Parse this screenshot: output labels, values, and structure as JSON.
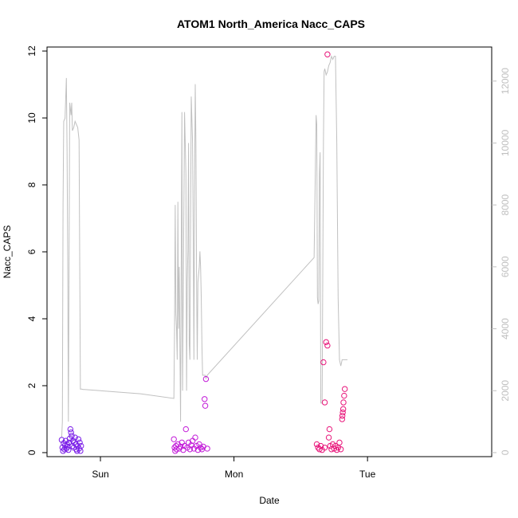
{
  "chart_data": {
    "type": "scatter",
    "title": "ATOM1 North_America Nacc_CAPS",
    "xlabel": "Date",
    "ylabel": "Nacc_CAPS",
    "x_ticks": [
      {
        "label": "Sun",
        "value": 1.0
      },
      {
        "label": "Mon",
        "value": 2.0
      },
      {
        "label": "Tue",
        "value": 3.0
      }
    ],
    "xlim": [
      0.6,
      3.93
    ],
    "ylim": [
      -0.12,
      12.12
    ],
    "y_ticks": [
      0,
      2,
      4,
      6,
      8,
      10,
      12
    ],
    "y2lim": [
      -130,
      13100
    ],
    "y2_ticks": [
      0,
      2000,
      4000,
      6000,
      8000,
      10000,
      12000
    ],
    "y2_color": "#bfbfbf",
    "grid": false,
    "series": [
      {
        "role": "points",
        "marker": "open-circle",
        "points": [
          {
            "x": 0.71,
            "y": 0.38,
            "c": "#7b1fe8"
          },
          {
            "x": 0.715,
            "y": 0.15,
            "c": "#7b1fe8"
          },
          {
            "x": 0.72,
            "y": 0.05,
            "c": "#7b1fe8"
          },
          {
            "x": 0.725,
            "y": 0.28,
            "c": "#7b1fe8"
          },
          {
            "x": 0.73,
            "y": 0.1,
            "c": "#7b1fe8"
          },
          {
            "x": 0.735,
            "y": 0.22,
            "c": "#7b1fe8"
          },
          {
            "x": 0.74,
            "y": 0.35,
            "c": "#7b1fe8"
          },
          {
            "x": 0.745,
            "y": 0.12,
            "c": "#7b1fe8"
          },
          {
            "x": 0.75,
            "y": 0.25,
            "c": "#7b1fe8"
          },
          {
            "x": 0.755,
            "y": 0.18,
            "c": "#7b1fe8"
          },
          {
            "x": 0.76,
            "y": 0.08,
            "c": "#7b1fe8"
          },
          {
            "x": 0.765,
            "y": 0.3,
            "c": "#7b1fe8"
          },
          {
            "x": 0.77,
            "y": 0.42,
            "c": "#7b1fe8"
          },
          {
            "x": 0.775,
            "y": 0.7,
            "c": "#7b1fe8"
          },
          {
            "x": 0.78,
            "y": 0.6,
            "c": "#7b1fe8"
          },
          {
            "x": 0.785,
            "y": 0.5,
            "c": "#7b1fe8"
          },
          {
            "x": 0.79,
            "y": 0.2,
            "c": "#7b1fe8"
          },
          {
            "x": 0.795,
            "y": 0.35,
            "c": "#7b1fe8"
          },
          {
            "x": 0.8,
            "y": 0.15,
            "c": "#7b1fe8"
          },
          {
            "x": 0.805,
            "y": 0.3,
            "c": "#7b1fe8"
          },
          {
            "x": 0.81,
            "y": 0.45,
            "c": "#7b1fe8"
          },
          {
            "x": 0.815,
            "y": 0.25,
            "c": "#7b1fe8"
          },
          {
            "x": 0.82,
            "y": 0.1,
            "c": "#7b1fe8"
          },
          {
            "x": 0.825,
            "y": 0.05,
            "c": "#7b1fe8"
          },
          {
            "x": 0.83,
            "y": 0.2,
            "c": "#7b1fe8"
          },
          {
            "x": 0.835,
            "y": 0.4,
            "c": "#7b1fe8"
          },
          {
            "x": 0.84,
            "y": 0.12,
            "c": "#7b1fe8"
          },
          {
            "x": 0.845,
            "y": 0.3,
            "c": "#7b1fe8"
          },
          {
            "x": 0.85,
            "y": 0.05,
            "c": "#7b1fe8"
          },
          {
            "x": 0.855,
            "y": 0.2,
            "c": "#7b1fe8"
          },
          {
            "x": 1.55,
            "y": 0.4,
            "c": "#c21ad8"
          },
          {
            "x": 1.555,
            "y": 0.15,
            "c": "#c21ad8"
          },
          {
            "x": 1.56,
            "y": 0.05,
            "c": "#c21ad8"
          },
          {
            "x": 1.565,
            "y": 0.2,
            "c": "#c21ad8"
          },
          {
            "x": 1.57,
            "y": 0.1,
            "c": "#c21ad8"
          },
          {
            "x": 1.58,
            "y": 0.25,
            "c": "#c21ad8"
          },
          {
            "x": 1.59,
            "y": 0.12,
            "c": "#c21ad8"
          },
          {
            "x": 1.6,
            "y": 0.18,
            "c": "#c21ad8"
          },
          {
            "x": 1.61,
            "y": 0.3,
            "c": "#c21ad8"
          },
          {
            "x": 1.62,
            "y": 0.08,
            "c": "#c21ad8"
          },
          {
            "x": 1.63,
            "y": 0.2,
            "c": "#c21ad8"
          },
          {
            "x": 1.64,
            "y": 0.7,
            "c": "#c21ad8"
          },
          {
            "x": 1.65,
            "y": 0.15,
            "c": "#c21ad8"
          },
          {
            "x": 1.66,
            "y": 0.3,
            "c": "#c21ad8"
          },
          {
            "x": 1.67,
            "y": 0.1,
            "c": "#c21ad8"
          },
          {
            "x": 1.68,
            "y": 0.22,
            "c": "#c21ad8"
          },
          {
            "x": 1.69,
            "y": 0.35,
            "c": "#c21ad8"
          },
          {
            "x": 1.7,
            "y": 0.12,
            "c": "#c21ad8"
          },
          {
            "x": 1.71,
            "y": 0.45,
            "c": "#c21ad8"
          },
          {
            "x": 1.72,
            "y": 0.2,
            "c": "#c21ad8"
          },
          {
            "x": 1.73,
            "y": 0.08,
            "c": "#c21ad8"
          },
          {
            "x": 1.74,
            "y": 0.25,
            "c": "#c21ad8"
          },
          {
            "x": 1.75,
            "y": 0.15,
            "c": "#c21ad8"
          },
          {
            "x": 1.76,
            "y": 0.1,
            "c": "#c21ad8"
          },
          {
            "x": 1.77,
            "y": 0.18,
            "c": "#c21ad8"
          },
          {
            "x": 1.78,
            "y": 1.6,
            "c": "#c21ad8"
          },
          {
            "x": 1.785,
            "y": 1.4,
            "c": "#c21ad8"
          },
          {
            "x": 1.79,
            "y": 2.2,
            "c": "#c21ad8"
          },
          {
            "x": 1.8,
            "y": 0.12,
            "c": "#c21ad8"
          },
          {
            "x": 2.62,
            "y": 0.25,
            "c": "#e8157a"
          },
          {
            "x": 2.63,
            "y": 0.15,
            "c": "#e8157a"
          },
          {
            "x": 2.64,
            "y": 0.1,
            "c": "#e8157a"
          },
          {
            "x": 2.65,
            "y": 0.2,
            "c": "#e8157a"
          },
          {
            "x": 2.66,
            "y": 0.08,
            "c": "#e8157a"
          },
          {
            "x": 2.67,
            "y": 2.7,
            "c": "#e8157a"
          },
          {
            "x": 2.68,
            "y": 0.15,
            "c": "#e8157a"
          },
          {
            "x": 2.69,
            "y": 3.3,
            "c": "#e8157a"
          },
          {
            "x": 2.7,
            "y": 3.2,
            "c": "#e8157a"
          },
          {
            "x": 2.71,
            "y": 0.45,
            "c": "#e8157a"
          },
          {
            "x": 2.715,
            "y": 0.7,
            "c": "#e8157a"
          },
          {
            "x": 2.72,
            "y": 0.2,
            "c": "#e8157a"
          },
          {
            "x": 2.73,
            "y": 0.1,
            "c": "#e8157a"
          },
          {
            "x": 2.68,
            "y": 1.5,
            "c": "#e8157a"
          },
          {
            "x": 2.74,
            "y": 0.25,
            "c": "#e8157a"
          },
          {
            "x": 2.75,
            "y": 0.12,
            "c": "#e8157a"
          },
          {
            "x": 2.76,
            "y": 0.2,
            "c": "#e8157a"
          },
          {
            "x": 2.77,
            "y": 0.08,
            "c": "#e8157a"
          },
          {
            "x": 2.78,
            "y": 0.15,
            "c": "#e8157a"
          },
          {
            "x": 2.79,
            "y": 0.3,
            "c": "#e8157a"
          },
          {
            "x": 2.8,
            "y": 0.1,
            "c": "#e8157a"
          },
          {
            "x": 2.81,
            "y": 1.0,
            "c": "#e8157a"
          },
          {
            "x": 2.812,
            "y": 1.1,
            "c": "#e8157a"
          },
          {
            "x": 2.815,
            "y": 1.2,
            "c": "#e8157a"
          },
          {
            "x": 2.818,
            "y": 1.3,
            "c": "#e8157a"
          },
          {
            "x": 2.82,
            "y": 1.5,
            "c": "#e8157a"
          },
          {
            "x": 2.825,
            "y": 1.7,
            "c": "#e8157a"
          },
          {
            "x": 2.83,
            "y": 1.9,
            "c": "#e8157a"
          },
          {
            "x": 2.7,
            "y": 11.9,
            "c": "#e8157a"
          }
        ]
      },
      {
        "role": "line",
        "axis": "right",
        "color": "#c0c0c0",
        "x": [
          0.71,
          0.715,
          0.72,
          0.725,
          0.735,
          0.745,
          0.75,
          0.755,
          0.76,
          0.77,
          0.78,
          0.785,
          0.79,
          0.8,
          0.81,
          0.82,
          0.83,
          0.835,
          0.84,
          0.85,
          0.86,
          0.87,
          0.88,
          1.3,
          1.55,
          1.555,
          1.56,
          1.565,
          1.57,
          1.575,
          1.58,
          1.585,
          1.59,
          1.6,
          1.61,
          1.615,
          1.62,
          1.63,
          1.64,
          1.645,
          1.65,
          1.655,
          1.66,
          1.665,
          1.67,
          1.68,
          1.69,
          1.695,
          1.7,
          1.705,
          1.71,
          1.715,
          1.72,
          1.725,
          1.73,
          1.74,
          1.745,
          1.75,
          1.755,
          1.76,
          1.765,
          1.77,
          1.775,
          1.78,
          1.785,
          1.79,
          1.8,
          2.6,
          2.61,
          2.615,
          2.62,
          2.625,
          2.63,
          2.635,
          2.64,
          2.645,
          2.65,
          2.66,
          2.665,
          2.67,
          2.675,
          2.68,
          2.69,
          2.7,
          2.71,
          2.72,
          2.73,
          2.74,
          2.75,
          2.76,
          2.77,
          2.78,
          2.79,
          2.8,
          2.81,
          2.82,
          2.83,
          2.84,
          2.845,
          2.85
        ],
        "y": [
          500,
          1000,
          8000,
          10700,
          10800,
          12100,
          9800,
          6300,
          1000,
          11300,
          10900,
          11300,
          10400,
          10500,
          10700,
          10600,
          10500,
          10300,
          10100,
          2050,
          2050,
          2040,
          2040,
          1900,
          1750,
          4000,
          8000,
          4500,
          4000,
          3000,
          8100,
          4000,
          6000,
          1000,
          11000,
          2000,
          5000,
          11000,
          9000,
          2000,
          5500,
          6500,
          10000,
          3500,
          3000,
          11500,
          10000,
          7000,
          3000,
          8500,
          11900,
          10000,
          5500,
          3000,
          5500,
          6000,
          6500,
          6000,
          5000,
          3500,
          2500,
          2500,
          2500,
          2500,
          2500,
          2400,
          2500,
          6300,
          9300,
          10900,
          10600,
          5000,
          4800,
          4900,
          9000,
          9700,
          1600,
          1600,
          5800,
          10000,
          12300,
          12400,
          12200,
          12300,
          12500,
          12600,
          12800,
          12700,
          12800,
          12800,
          10000,
          5000,
          3000,
          2800,
          3000,
          3000,
          3000,
          3000,
          3000,
          3000
        ]
      }
    ]
  }
}
